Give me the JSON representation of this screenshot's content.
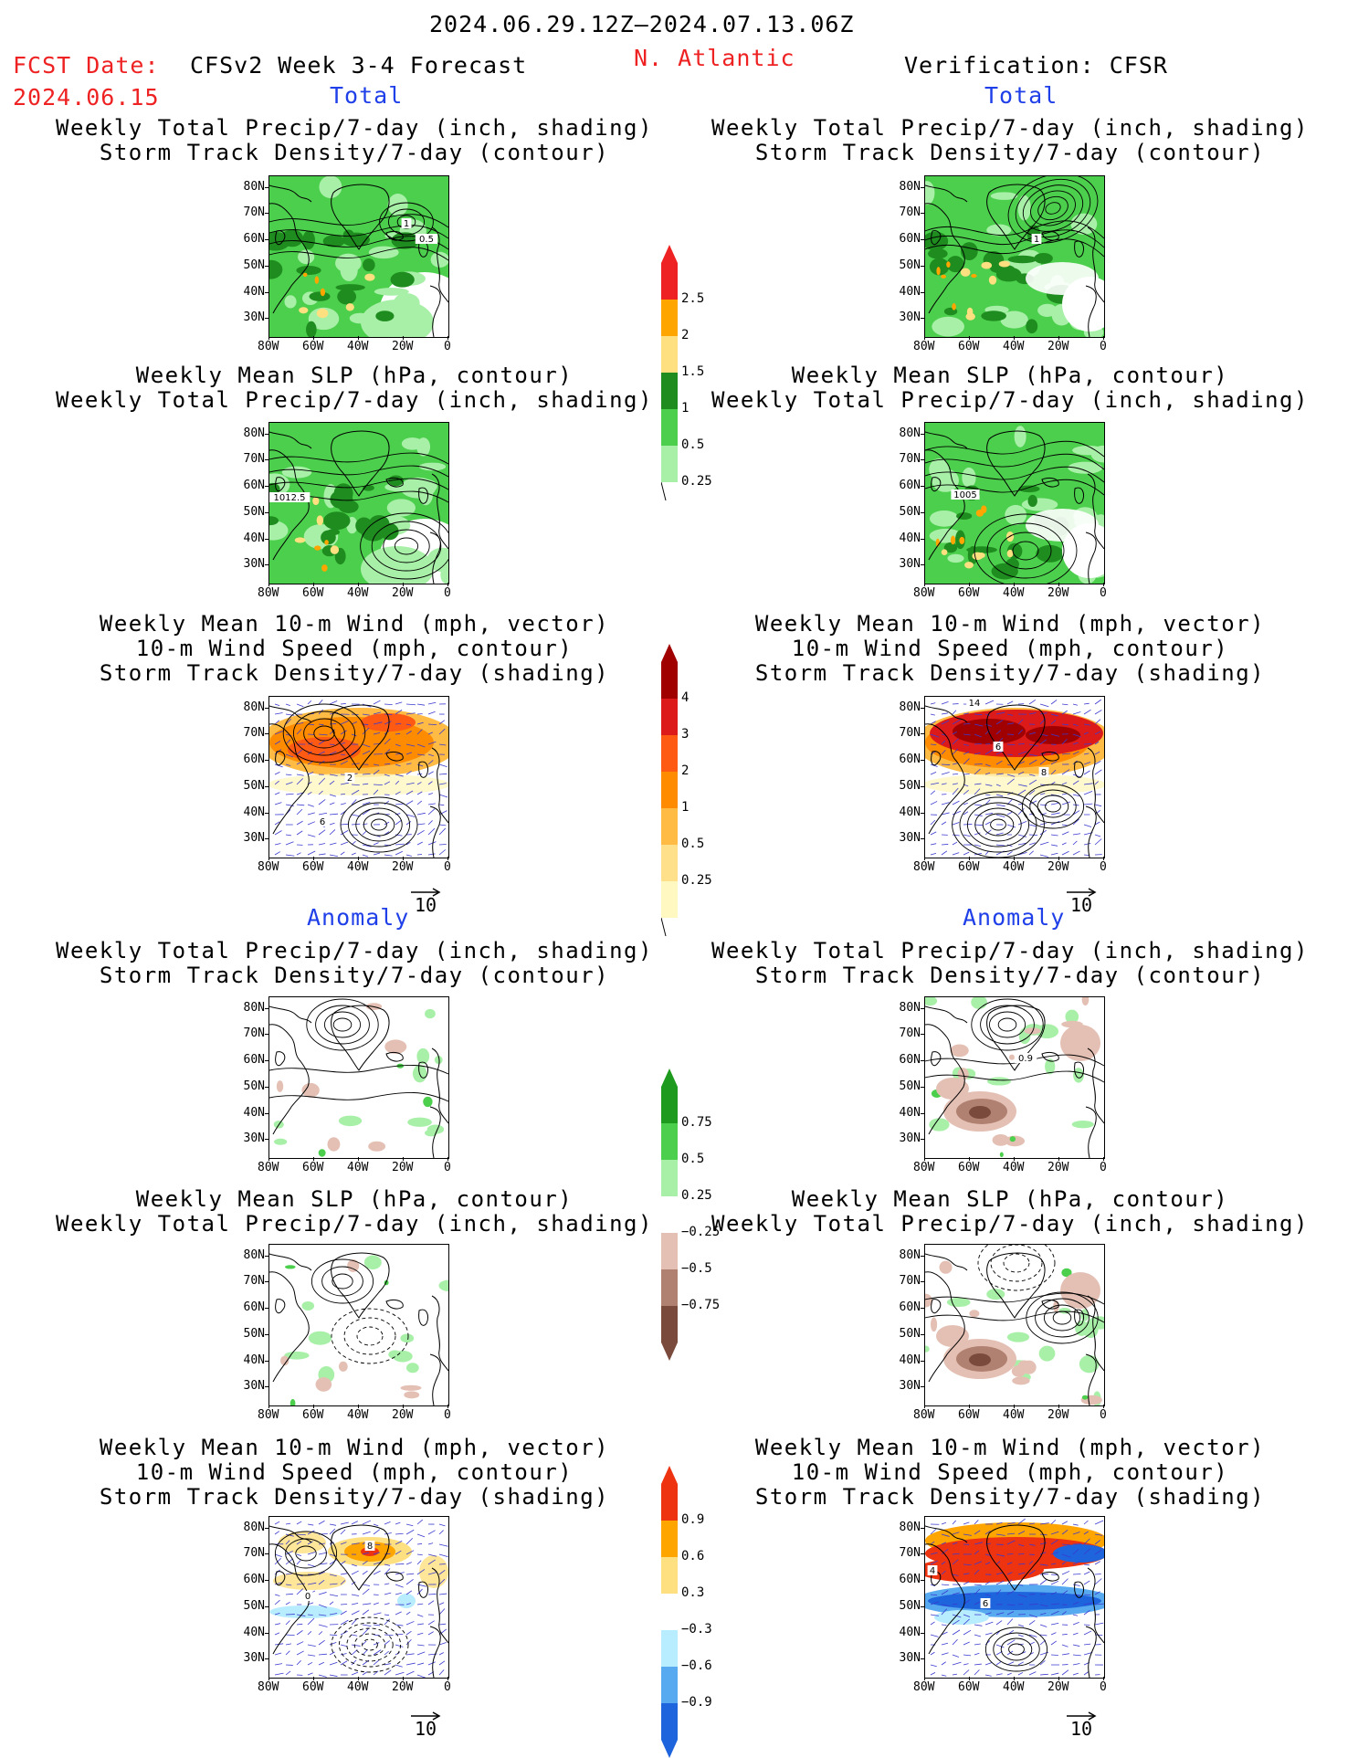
{
  "header": {
    "date_range": "2024.06.29.12Z—2024.07.13.06Z",
    "fcst_label": "FCST Date:",
    "fcst_date": "2024.06.15",
    "model_title": "CFSv2 Week 3-4 Forecast",
    "region": "N. Atlantic",
    "verification": "Verification: CFSR"
  },
  "sections": {
    "total": "Total",
    "anomaly": "Anomaly"
  },
  "panel_titles": {
    "precip_storm": [
      "Weekly Total Precip/7-day (inch, shading)",
      "Storm Track Density/7-day (contour)"
    ],
    "slp_precip": [
      "Weekly Mean SLP (hPa, contour)",
      "Weekly Total Precip/7-day (inch, shading)"
    ],
    "wind_storm": [
      "Weekly Mean 10-m Wind (mph, vector)",
      "10-m Wind Speed (mph, contour)",
      "Storm Track Density/7-day (shading)"
    ]
  },
  "axes": {
    "lat_ticks": [
      "80N",
      "70N",
      "60N",
      "50N",
      "40N",
      "30N"
    ],
    "lon_ticks": [
      "80W",
      "60W",
      "40W",
      "20W",
      "0"
    ]
  },
  "vector_scale": "10",
  "contour_labels": {
    "fcst_total_precip": [
      "1",
      "0.5"
    ],
    "verif_total_precip": [
      "1"
    ],
    "fcst_total_slp": [
      "1012.5"
    ],
    "verif_total_slp": [
      "1005"
    ],
    "fcst_total_wind": [
      "2",
      "6"
    ],
    "verif_total_wind": [
      "6",
      "8",
      "14"
    ],
    "verif_anom_precip": [
      "0.9"
    ],
    "fcst_anom_wind": [
      "8",
      "0"
    ],
    "verif_anom_wind": [
      "4",
      "6"
    ]
  },
  "colorbars": {
    "total_precip": {
      "labels": [
        "2.5",
        "2",
        "1.5",
        "1",
        "0.5",
        "0.25"
      ],
      "colors": [
        "#ee2222",
        "#ffa500",
        "#ffe080",
        "#1e8c1e",
        "#4ccf4c",
        "#a8f0a8"
      ]
    },
    "total_storm": {
      "labels": [
        "4",
        "3",
        "2",
        "1",
        "0.5",
        "0.25"
      ],
      "colors": [
        "#a00000",
        "#dd1a1a",
        "#ff5a14",
        "#ff8c00",
        "#ffbb44",
        "#ffe08a",
        "#fff8c0"
      ]
    },
    "anom_precip": {
      "labels": [
        "0.75",
        "0.5",
        "0.25",
        "−0.25",
        "−0.5",
        "−0.75"
      ],
      "colors": [
        "#1e9a1e",
        "#4ccf4c",
        "#a8f0a8",
        "#ffffff",
        "#e4c0b4",
        "#b08070",
        "#7a4a3c"
      ]
    },
    "anom_storm": {
      "labels": [
        "0.9",
        "0.6",
        "0.3",
        "−0.3",
        "−0.6",
        "−0.9"
      ],
      "colors": [
        "#ee3311",
        "#ffa500",
        "#ffe080",
        "#ffffff",
        "#b8ecff",
        "#58aaf0",
        "#1e64dc"
      ]
    }
  }
}
